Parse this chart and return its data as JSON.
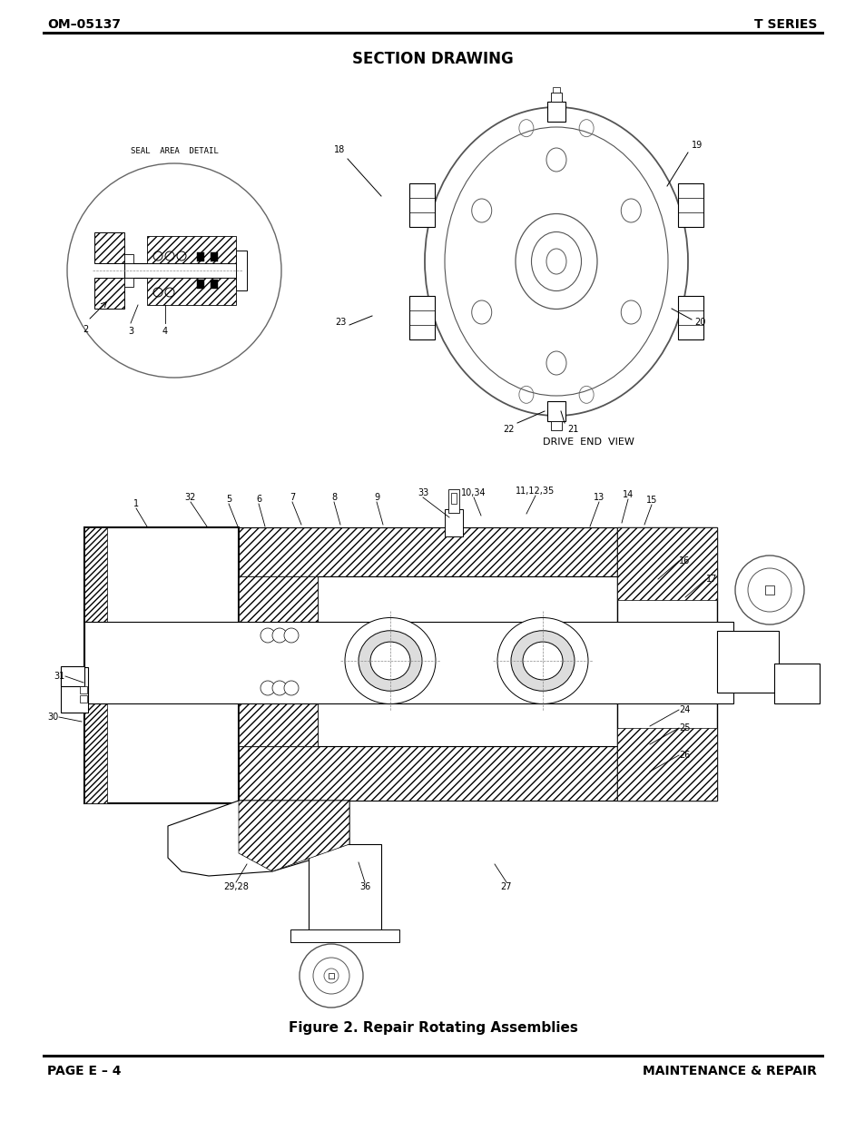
{
  "page_header_left": "OM–05137",
  "page_header_right": "T SERIES",
  "page_footer_left": "PAGE E – 4",
  "page_footer_right": "MAINTENANCE & REPAIR",
  "section_title": "SECTION DRAWING",
  "figure_caption": "Figure 2. Repair Rotating Assemblies",
  "drive_end_label": "DRIVE  END  VIEW",
  "seal_area_label": "SEAL  AREA  DETAIL",
  "background": "#ffffff",
  "lc": "#000000",
  "gc": "#888888",
  "header_fontsize": 10,
  "title_fontsize": 12,
  "label_fontsize": 7,
  "footer_fontsize": 10,
  "caption_fontsize": 11
}
